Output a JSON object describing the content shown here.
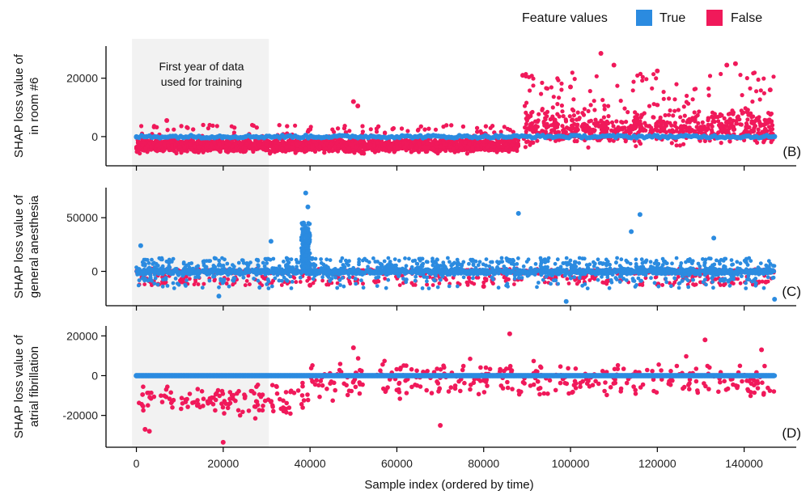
{
  "legend": {
    "title": "Feature values",
    "entries": [
      {
        "label": "True",
        "color": "#2b8be0"
      },
      {
        "label": "False",
        "color": "#f0195a"
      }
    ]
  },
  "annotation": {
    "line1": "First year of data",
    "line2": "used for training",
    "x_range": [
      -1000,
      30500
    ]
  },
  "x_axis": {
    "label": "Sample index (ordered by time)",
    "range": [
      -7000,
      152000
    ],
    "ticks": [
      0,
      20000,
      40000,
      60000,
      80000,
      100000,
      120000,
      140000
    ],
    "tick_labels": [
      "0",
      "20000",
      "40000",
      "60000",
      "80000",
      "100000",
      "120000",
      "140000"
    ],
    "data_max": 147000
  },
  "chart_data": [
    {
      "type": "scatter",
      "panel_label": "(B)",
      "ylabel_line1": "SHAP loss value of",
      "ylabel_line2": "in room #6",
      "ylim": [
        -10000,
        31000
      ],
      "yticks": [
        0,
        20000
      ],
      "ytick_labels": [
        "0",
        "20000"
      ],
      "series": [
        {
          "name": "True",
          "color": "#2b8be0",
          "summary": "constant band at y ≈ 0 across x = 0–147000",
          "points": [
            [
              0,
              0
            ],
            [
              20000,
              0
            ],
            [
              40000,
              0
            ],
            [
              60000,
              0
            ],
            [
              80000,
              0
            ],
            [
              100000,
              0
            ],
            [
              120000,
              0
            ],
            [
              147000,
              0
            ]
          ]
        },
        {
          "name": "False",
          "color": "#f0195a",
          "summary": "x 0–88000: y ≈ -9000 to 0 (few to 5000, cluster ~11000 near x 50000); x 89000–147000: y ≈ -5000 to 29000",
          "points": [
            [
              5000,
              -3000
            ],
            [
              7000,
              5500
            ],
            [
              50000,
              12000
            ],
            [
              51000,
              10500
            ],
            [
              86000,
              -1500
            ],
            [
              89000,
              21000
            ],
            [
              100000,
              17000
            ],
            [
              107000,
              28500
            ],
            [
              110000,
              24500
            ],
            [
              120000,
              22500
            ],
            [
              136000,
              24500
            ],
            [
              138000,
              25000
            ],
            [
              146000,
              16000
            ]
          ]
        }
      ]
    },
    {
      "type": "scatter",
      "panel_label": "(C)",
      "ylabel_line1": "SHAP loss value of",
      "ylabel_line2": "general anesthesia",
      "ylim": [
        -32000,
        78000
      ],
      "yticks": [
        0,
        50000
      ],
      "ytick_labels": [
        "0",
        "50000"
      ],
      "series": [
        {
          "name": "True",
          "color": "#2b8be0",
          "summary": "band y ≈ -12000 to 12000 across x = 0–147000; spike to ~73000 at x ≈ 39000",
          "points": [
            [
              1000,
              24000
            ],
            [
              19000,
              -23000
            ],
            [
              31000,
              28000
            ],
            [
              38500,
              45000
            ],
            [
              39000,
              73000
            ],
            [
              39500,
              60000
            ],
            [
              88000,
              54000
            ],
            [
              99000,
              -28000
            ],
            [
              114000,
              37000
            ],
            [
              116000,
              53000
            ],
            [
              133000,
              31000
            ],
            [
              147000,
              -26000
            ]
          ]
        },
        {
          "name": "False",
          "color": "#f0195a",
          "summary": "band y ≈ -14000 to 6000 across x = 0–147000",
          "points": [
            [
              5000,
              -12000
            ],
            [
              40000,
              -13000
            ],
            [
              80000,
              -14000
            ],
            [
              120000,
              -12000
            ],
            [
              145000,
              -10000
            ]
          ]
        }
      ]
    },
    {
      "type": "scatter",
      "panel_label": "(D)",
      "ylabel_line1": "SHAP loss value of",
      "ylabel_line2": "atrial fibrillation",
      "ylim": [
        -36000,
        25000
      ],
      "yticks": [
        -20000,
        0,
        20000
      ],
      "ytick_labels": [
        "-20000",
        "0",
        "20000"
      ],
      "series": [
        {
          "name": "True",
          "color": "#2b8be0",
          "summary": "constant line at y = 0 across x = 0–147000",
          "points": [
            [
              0,
              0
            ],
            [
              147000,
              0
            ]
          ]
        },
        {
          "name": "False",
          "color": "#f0195a",
          "summary": "~470 scattered points, y ≈ -33000 to 21000",
          "points": [
            [
              2000,
              -27000
            ],
            [
              3000,
              -28000
            ],
            [
              20000,
              -33500
            ],
            [
              50000,
              14000
            ],
            [
              70000,
              -25000
            ],
            [
              86000,
              21000
            ],
            [
              131000,
              18000
            ],
            [
              144000,
              13000
            ]
          ]
        }
      ]
    }
  ]
}
